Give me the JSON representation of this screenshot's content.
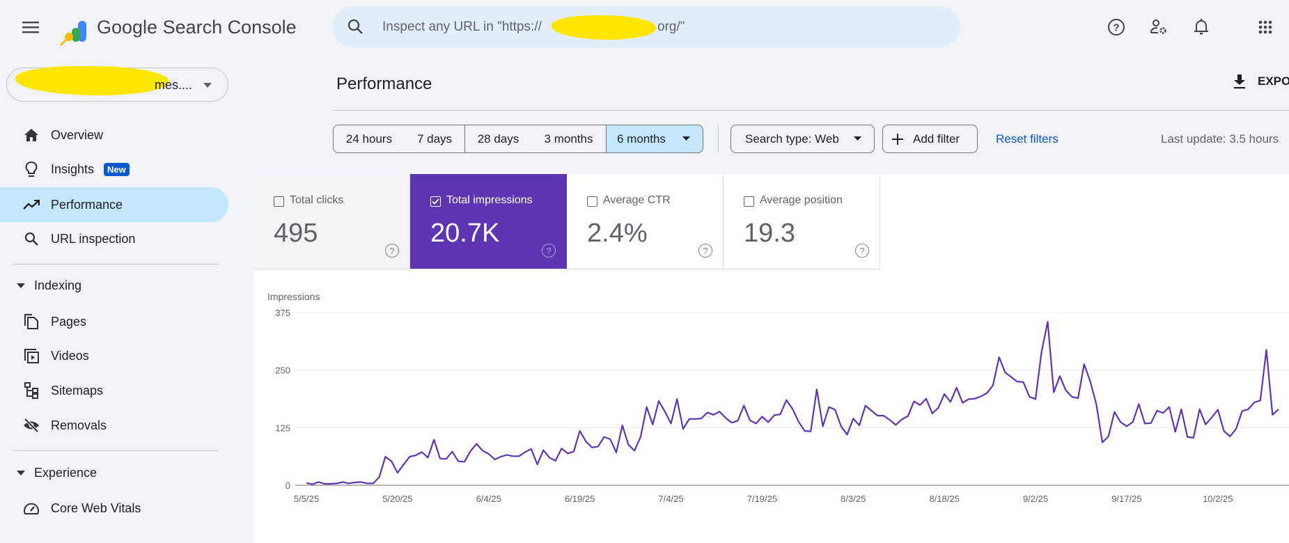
{
  "header": {
    "app_title": "Google Search Console",
    "search_placeholder_prefix": "Inspect any URL in \"https://",
    "search_placeholder_suffix": "org/\"",
    "icons": [
      "menu-icon",
      "help-icon",
      "admin-icon",
      "bell-icon",
      "apps-icon"
    ]
  },
  "property": {
    "visible_text": "mes....",
    "icon": "caret-down-icon"
  },
  "sidebar": {
    "items": [
      {
        "label": "Overview",
        "icon": "home-icon"
      },
      {
        "label": "Insights",
        "icon": "lightbulb-icon",
        "badge": "New"
      },
      {
        "label": "Performance",
        "icon": "trending-up-icon",
        "active": true
      },
      {
        "label": "URL inspection",
        "icon": "search-icon"
      }
    ],
    "sections": [
      {
        "label": "Indexing",
        "items": [
          {
            "label": "Pages",
            "icon": "pages-icon"
          },
          {
            "label": "Videos",
            "icon": "video-icon"
          },
          {
            "label": "Sitemaps",
            "icon": "sitemap-icon"
          },
          {
            "label": "Removals",
            "icon": "eye-off-icon"
          }
        ]
      },
      {
        "label": "Experience",
        "items": [
          {
            "label": "Core Web Vitals",
            "icon": "gauge-icon"
          }
        ]
      }
    ]
  },
  "main": {
    "title": "Performance",
    "export_label": "EXPO",
    "date_ranges": [
      "24 hours",
      "7 days",
      "28 days",
      "3 months",
      "6 months"
    ],
    "selected_range": "6 months",
    "search_type": "Search type: Web",
    "add_filter": "Add filter",
    "reset_filters": "Reset filters",
    "last_update": "Last update: 3.5 hours",
    "metrics": [
      {
        "label": "Total clicks",
        "value": "495",
        "checked": false
      },
      {
        "label": "Total impressions",
        "value": "20.7K",
        "checked": true
      },
      {
        "label": "Average CTR",
        "value": "2.4%",
        "checked": false
      },
      {
        "label": "Average position",
        "value": "19.3",
        "checked": false
      }
    ]
  },
  "colors": {
    "accent": "#5e35b1",
    "selected_range": "#c2e7ff",
    "link": "#0b57d0",
    "active_nav": "#c2e7ff"
  },
  "chart_data": {
    "type": "line",
    "ylabel": "Impressions",
    "ylim": [
      0,
      375
    ],
    "yticks": [
      0,
      125,
      250,
      375
    ],
    "grid": true,
    "xtick_labels": [
      "5/5/25",
      "5/20/25",
      "6/4/25",
      "6/19/25",
      "7/4/25",
      "7/19/25",
      "8/3/25",
      "8/18/25",
      "9/2/25",
      "9/17/25",
      "10/2/25"
    ],
    "series": [
      {
        "color": "#5e35b1",
        "values": [
          5,
          2,
          7,
          3,
          3,
          4,
          7,
          4,
          6,
          7,
          4,
          4,
          18,
          62,
          52,
          27,
          45,
          62,
          65,
          72,
          60,
          99,
          58,
          57,
          73,
          52,
          51,
          74,
          90,
          75,
          68,
          56,
          62,
          66,
          63,
          63,
          72,
          79,
          45,
          76,
          60,
          53,
          80,
          69,
          73,
          118,
          95,
          82,
          84,
          105,
          100,
          71,
          130,
          88,
          75,
          105,
          170,
          132,
          183,
          160,
          134,
          187,
          122,
          144,
          144,
          145,
          158,
          153,
          160,
          146,
          136,
          140,
          173,
          141,
          134,
          149,
          137,
          152,
          154,
          185,
          166,
          138,
          118,
          117,
          208,
          128,
          170,
          164,
          128,
          110,
          145,
          130,
          173,
          162,
          151,
          151,
          142,
          131,
          143,
          150,
          182,
          174,
          188,
          156,
          168,
          198,
          181,
          212,
          179,
          187,
          188,
          193,
          200,
          217,
          278,
          245,
          235,
          225,
          224,
          192,
          187,
          290,
          355,
          202,
          237,
          206,
          192,
          189,
          263,
          226,
          176,
          93,
          106,
          159,
          137,
          128,
          137,
          176,
          134,
          135,
          162,
          157,
          170,
          116,
          165,
          105,
          103,
          165,
          132,
          147,
          164,
          118,
          106,
          122,
          161,
          165,
          180,
          184,
          294,
          153,
          165
        ]
      }
    ],
    "x": [
      "5/5/25",
      "5/6/25",
      "5/7/25",
      "5/8/25",
      "5/9/25",
      "5/10/25",
      "5/11/25",
      "5/12/25",
      "5/13/25",
      "5/14/25",
      "5/15/25",
      "5/16/25",
      "5/17/25",
      "5/18/25",
      "5/19/25",
      "5/20/25",
      "5/21/25",
      "5/22/25",
      "5/23/25",
      "5/24/25",
      "5/25/25",
      "5/26/25",
      "5/27/25",
      "5/28/25",
      "5/29/25",
      "5/30/25",
      "5/31/25",
      "6/1/25",
      "6/2/25",
      "6/3/25",
      "6/4/25",
      "6/5/25",
      "6/6/25",
      "6/7/25",
      "6/8/25",
      "6/9/25",
      "6/10/25",
      "6/11/25",
      "6/12/25",
      "6/13/25",
      "6/14/25",
      "6/15/25",
      "6/16/25",
      "6/17/25",
      "6/18/25",
      "6/19/25",
      "6/20/25",
      "6/21/25",
      "6/22/25",
      "6/23/25",
      "6/24/25",
      "6/25/25",
      "6/26/25",
      "6/27/25",
      "6/28/25",
      "6/29/25",
      "6/30/25",
      "7/1/25",
      "7/2/25",
      "7/3/25",
      "7/4/25",
      "7/5/25",
      "7/6/25",
      "7/7/25",
      "7/8/25",
      "7/9/25",
      "7/10/25",
      "7/11/25",
      "7/12/25",
      "7/13/25",
      "7/14/25",
      "7/15/25",
      "7/16/25",
      "7/17/25",
      "7/18/25",
      "7/19/25",
      "7/20/25",
      "7/21/25",
      "7/22/25",
      "7/23/25",
      "7/24/25",
      "7/25/25",
      "7/26/25",
      "7/27/25",
      "7/28/25",
      "7/29/25",
      "7/30/25",
      "7/31/25",
      "8/1/25",
      "8/2/25",
      "8/3/25",
      "8/4/25",
      "8/5/25",
      "8/6/25",
      "8/7/25",
      "8/8/25",
      "8/9/25",
      "8/10/25",
      "8/11/25",
      "8/12/25",
      "8/13/25",
      "8/14/25",
      "8/15/25",
      "8/16/25",
      "8/17/25",
      "8/18/25",
      "8/19/25",
      "8/20/25",
      "8/21/25",
      "8/22/25",
      "8/23/25",
      "8/24/25",
      "8/25/25",
      "8/26/25",
      "8/27/25",
      "8/28/25",
      "8/29/25",
      "8/30/25",
      "8/31/25",
      "9/1/25",
      "9/2/25",
      "9/3/25",
      "9/4/25",
      "9/5/25",
      "9/6/25",
      "9/7/25",
      "9/8/25",
      "9/9/25",
      "9/10/25",
      "9/11/25",
      "9/12/25",
      "9/13/25",
      "9/14/25",
      "9/15/25",
      "9/16/25",
      "9/17/25",
      "9/18/25",
      "9/19/25",
      "9/20/25",
      "9/21/25",
      "9/22/25",
      "9/23/25",
      "9/24/25",
      "9/25/25",
      "9/26/25",
      "9/27/25",
      "9/28/25",
      "9/29/25",
      "9/30/25",
      "10/1/25",
      "10/2/25",
      "10/3/25",
      "10/4/25",
      "10/5/25",
      "10/6/25",
      "10/7/25",
      "10/8/25",
      "10/9/25",
      "10/10/25",
      "10/11/25",
      "10/12/25"
    ]
  }
}
